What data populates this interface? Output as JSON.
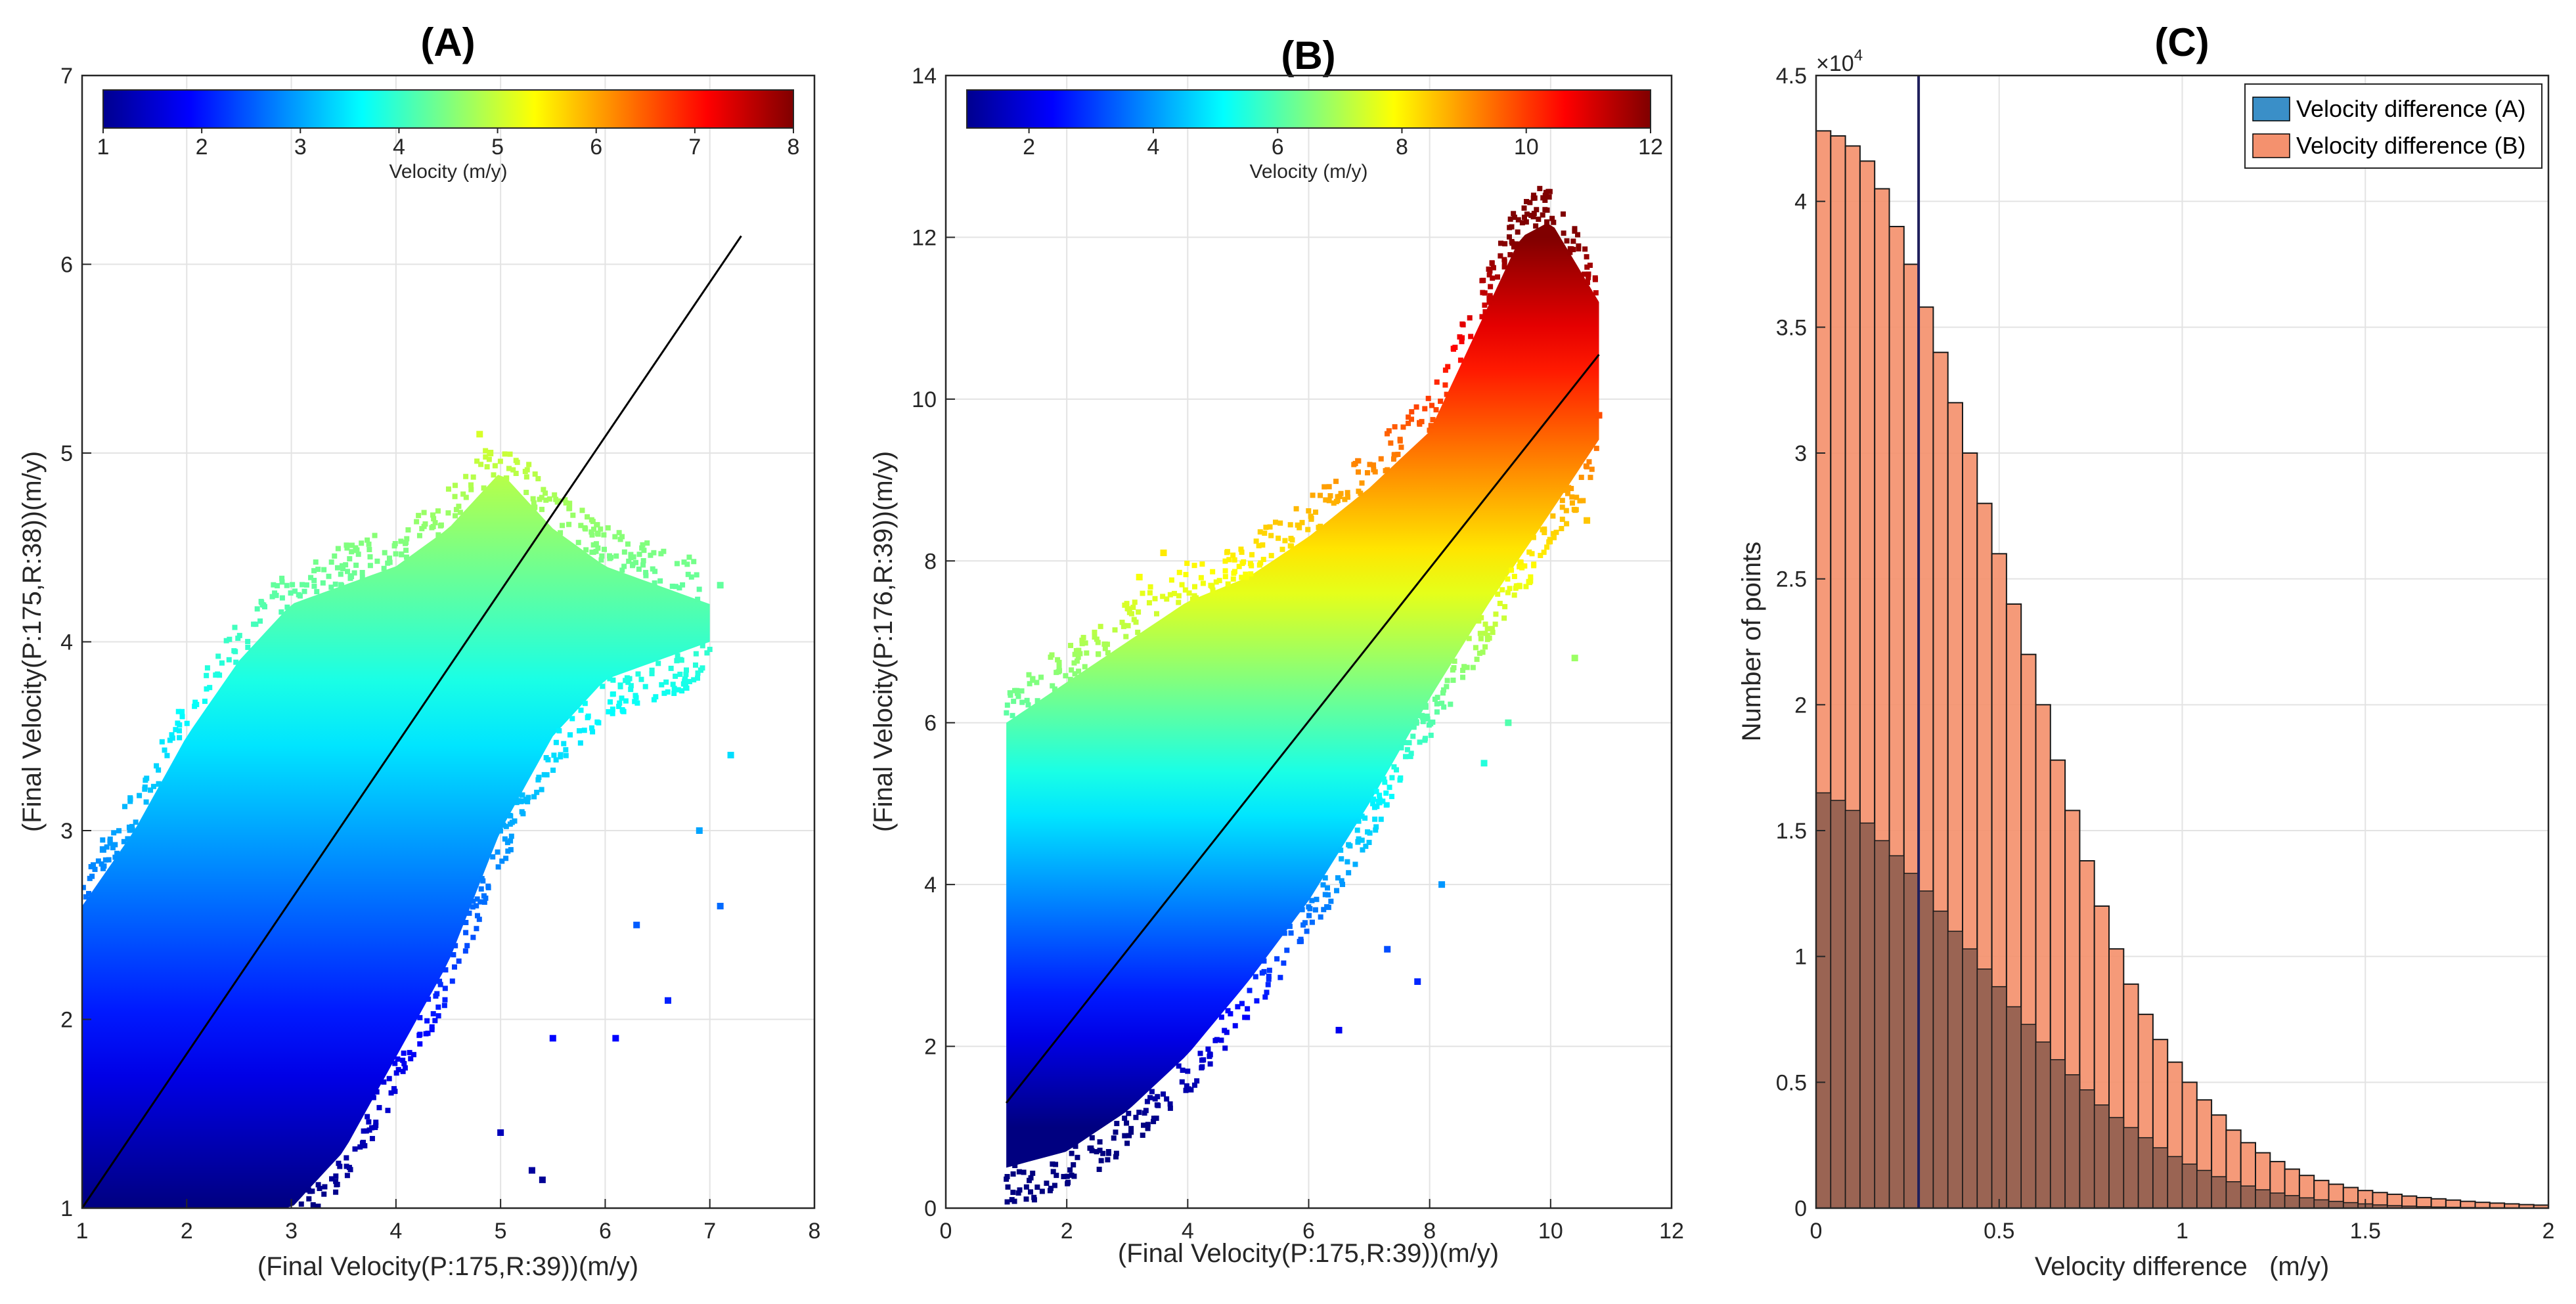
{
  "panels": [
    {
      "id": "A",
      "title": "(A)",
      "type": "scatter",
      "xlabel": "(Final Velocity(P:175,R:39))(m/y)",
      "ylabel": "(Final Velocity(P:175,R:38))(m/y)",
      "xlim": [
        1,
        8
      ],
      "ylim": [
        1,
        7
      ],
      "xticks": [
        1,
        2,
        3,
        4,
        5,
        6,
        7,
        8
      ],
      "yticks": [
        1,
        2,
        3,
        4,
        5,
        6,
        7
      ],
      "grid": true,
      "colormap": "jet",
      "colorbar": {
        "label": "Velocity (m/y)",
        "range": [
          1,
          8
        ],
        "ticks": [
          1,
          2,
          3,
          4,
          5,
          6,
          7,
          8
        ],
        "placement": "top-inside"
      },
      "fit_line": {
        "x": [
          1,
          7.3
        ],
        "y": [
          1.0,
          6.15
        ]
      },
      "point_cloud": {
        "description_free": true,
        "band_lower": [
          [
            2.5,
            1.0
          ],
          [
            3.0,
            1.0
          ],
          [
            3.5,
            1.3
          ],
          [
            4.0,
            1.8
          ],
          [
            4.5,
            2.3
          ],
          [
            5.0,
            3.0
          ],
          [
            5.5,
            3.5
          ],
          [
            6.0,
            3.8
          ],
          [
            6.5,
            3.9
          ],
          [
            7.0,
            4.0
          ]
        ],
        "band_upper": [
          [
            1.0,
            2.6
          ],
          [
            1.5,
            3.0
          ],
          [
            2.0,
            3.5
          ],
          [
            2.5,
            3.9
          ],
          [
            3.0,
            4.2
          ],
          [
            3.5,
            4.3
          ],
          [
            4.0,
            4.4
          ],
          [
            4.5,
            4.6
          ],
          [
            5.0,
            4.9
          ],
          [
            5.5,
            4.6
          ],
          [
            6.0,
            4.4
          ],
          [
            6.5,
            4.3
          ],
          [
            7.0,
            4.2
          ]
        ],
        "outliers": [
          [
            4.8,
            5.1
          ],
          [
            4.9,
            5.0
          ],
          [
            6.1,
            1.9
          ],
          [
            5.3,
            1.2
          ],
          [
            5.5,
            1.9
          ],
          [
            7.1,
            2.6
          ],
          [
            6.6,
            2.1
          ],
          [
            7.2,
            3.4
          ],
          [
            6.9,
            3.0
          ],
          [
            7.1,
            4.3
          ],
          [
            1.2,
            2.9
          ],
          [
            5.0,
            1.4
          ],
          [
            5.4,
            1.15
          ],
          [
            6.3,
            2.5
          ]
        ]
      }
    },
    {
      "id": "B",
      "title": "(B)",
      "type": "scatter",
      "xlabel": "(Final Velocity(P:175,R:39))(m/y)",
      "ylabel": "(Final Velocity(P:176,R:39))(m/y)",
      "xlim": [
        0,
        12
      ],
      "ylim": [
        0,
        14
      ],
      "xticks": [
        0,
        2,
        4,
        6,
        8,
        10,
        12
      ],
      "yticks": [
        0,
        2,
        4,
        6,
        8,
        10,
        12,
        14
      ],
      "grid": true,
      "colormap": "jet",
      "colorbar": {
        "label": "Velocity (m/y)",
        "range": [
          1,
          12
        ],
        "ticks": [
          2,
          4,
          6,
          8,
          10,
          12
        ],
        "placement": "top-inside"
      },
      "fit_line": {
        "x": [
          1,
          10.8
        ],
        "y": [
          1.3,
          10.55
        ]
      },
      "point_cloud": {
        "band_lower": [
          [
            1.0,
            0.5
          ],
          [
            2.0,
            0.7
          ],
          [
            3.0,
            1.2
          ],
          [
            4.0,
            1.9
          ],
          [
            5.0,
            2.8
          ],
          [
            6.0,
            3.8
          ],
          [
            7.0,
            5.0
          ],
          [
            8.0,
            6.3
          ],
          [
            9.0,
            7.5
          ],
          [
            10.0,
            8.6
          ],
          [
            10.8,
            9.5
          ]
        ],
        "band_upper": [
          [
            1.0,
            6.0
          ],
          [
            2.0,
            6.5
          ],
          [
            3.0,
            7.0
          ],
          [
            4.0,
            7.5
          ],
          [
            5.0,
            7.8
          ],
          [
            6.0,
            8.3
          ],
          [
            7.0,
            8.9
          ],
          [
            8.0,
            9.6
          ],
          [
            9.0,
            11.2
          ],
          [
            9.5,
            12.0
          ],
          [
            10.0,
            12.2
          ],
          [
            10.8,
            11.2
          ]
        ],
        "outliers": [
          [
            6.5,
            2.2
          ],
          [
            7.8,
            2.8
          ],
          [
            7.3,
            3.2
          ],
          [
            8.2,
            4.0
          ],
          [
            9.3,
            6.0
          ],
          [
            10.4,
            6.8
          ],
          [
            10.6,
            8.5
          ],
          [
            10.8,
            9.8
          ],
          [
            3.2,
            7.8
          ],
          [
            3.6,
            8.1
          ],
          [
            8.9,
            5.5
          ]
        ]
      }
    },
    {
      "id": "C",
      "title": "(C)",
      "type": "histogram",
      "xlabel": "Velocity difference   (m/y)",
      "ylabel": "Number of points",
      "xlim": [
        0,
        2
      ],
      "ylim": [
        0,
        45000
      ],
      "xticks": [
        0,
        0.5,
        1,
        1.5,
        2
      ],
      "yticks": [
        0,
        5000,
        10000,
        15000,
        20000,
        25000,
        30000,
        35000,
        40000,
        45000
      ],
      "ytick_labels": [
        "0",
        "0.5",
        "1",
        "1.5",
        "2",
        "2.5",
        "3",
        "3.5",
        "4",
        "4.5"
      ],
      "y_multiplier_label": "×10",
      "y_multiplier_exponent": "4",
      "grid": true,
      "bin_width": 0.04,
      "vertical_line_x": 0.28,
      "legend": {
        "placement": "top-right"
      },
      "series": [
        {
          "name": "Velocity difference (A)",
          "color": "#3a8fc8",
          "values": [
            16500,
            16200,
            15800,
            15300,
            14600,
            14000,
            13300,
            12600,
            11800,
            11000,
            10300,
            9500,
            8800,
            8000,
            7300,
            6600,
            5900,
            5300,
            4700,
            4100,
            3600,
            3200,
            2800,
            2400,
            2050,
            1750,
            1500,
            1250,
            1050,
            880,
            730,
            600,
            500,
            410,
            330,
            270,
            220,
            170,
            130,
            100,
            80,
            60,
            45,
            35,
            25,
            20,
            15,
            10,
            8,
            5
          ]
        },
        {
          "name": "Velocity difference  (B)",
          "color": "#f4916e",
          "values": [
            42800,
            42600,
            42200,
            41600,
            40500,
            39000,
            37500,
            35800,
            34000,
            32000,
            30000,
            28000,
            26000,
            24000,
            22000,
            20000,
            17800,
            15800,
            13800,
            12000,
            10300,
            8900,
            7700,
            6700,
            5800,
            5000,
            4300,
            3700,
            3100,
            2600,
            2200,
            1850,
            1550,
            1300,
            1100,
            950,
            820,
            700,
            620,
            550,
            480,
            420,
            370,
            320,
            270,
            230,
            200,
            170,
            140,
            120
          ]
        }
      ]
    }
  ],
  "colors": {
    "grid": "#e3e3e3",
    "axis": "#262626",
    "fit_line": "#000000",
    "overlap": "#8a5a4c",
    "vline": "#1f1f5c"
  }
}
